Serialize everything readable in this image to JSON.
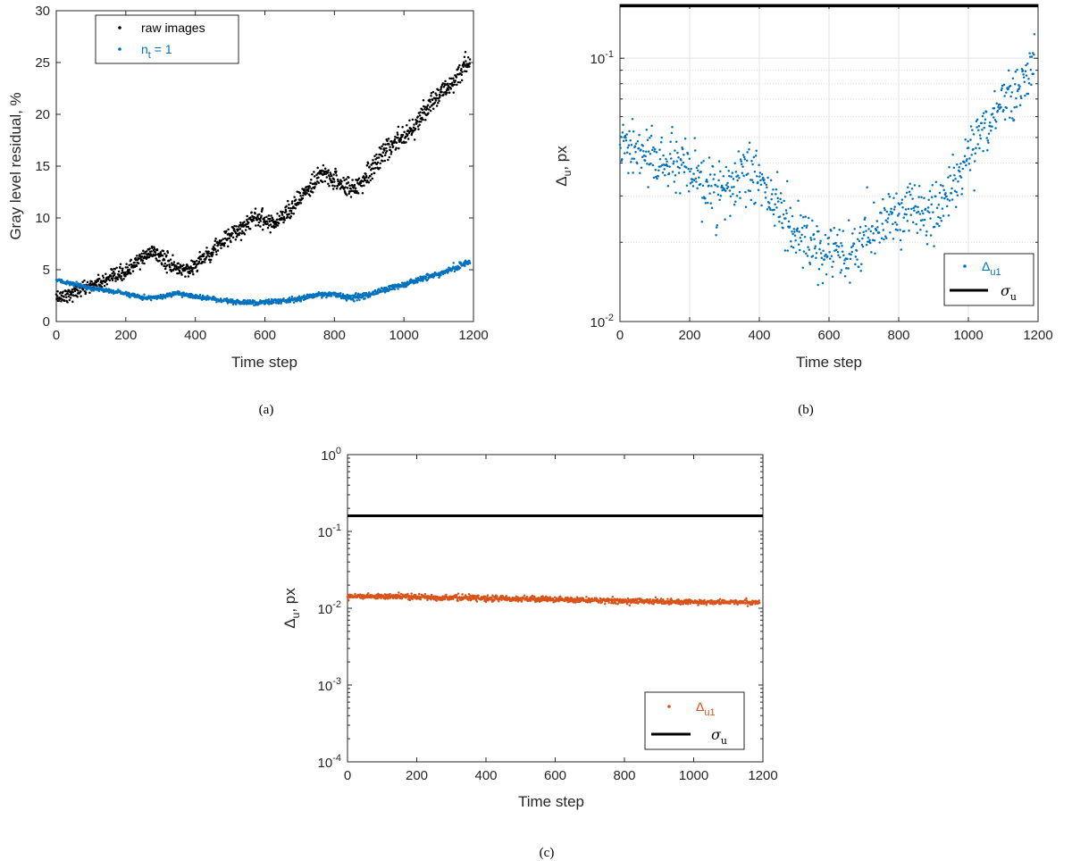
{
  "chart_data": [
    {
      "panel": "a",
      "caption": "(a)",
      "type": "scatter",
      "xlabel": "Time step",
      "ylabel": "Gray level residual, %",
      "xlim": [
        0,
        1200
      ],
      "ylim": [
        0,
        30
      ],
      "yscale": "linear",
      "xticks": [
        "0",
        "200",
        "400",
        "600",
        "800",
        "1000",
        "1200"
      ],
      "yticks": [
        "0",
        "5",
        "10",
        "15",
        "20",
        "25",
        "30"
      ],
      "grid": false,
      "legend_position": "top-left",
      "series": [
        {
          "name": "raw images",
          "color": "#000000",
          "style": "dots",
          "trend": [
            [
              0,
              2.3
            ],
            [
              50,
              2.8
            ],
            [
              100,
              3.5
            ],
            [
              150,
              4.0
            ],
            [
              200,
              4.8
            ],
            [
              250,
              6.2
            ],
            [
              280,
              6.8
            ],
            [
              310,
              6.0
            ],
            [
              340,
              5.2
            ],
            [
              380,
              5.0
            ],
            [
              420,
              6.0
            ],
            [
              460,
              7.2
            ],
            [
              500,
              8.2
            ],
            [
              540,
              9.2
            ],
            [
              570,
              10.2
            ],
            [
              600,
              9.8
            ],
            [
              630,
              9.5
            ],
            [
              660,
              10.5
            ],
            [
              700,
              11.8
            ],
            [
              740,
              13.2
            ],
            [
              770,
              14.3
            ],
            [
              800,
              13.8
            ],
            [
              830,
              13.0
            ],
            [
              860,
              12.8
            ],
            [
              900,
              14.5
            ],
            [
              950,
              16.5
            ],
            [
              1000,
              18.0
            ],
            [
              1050,
              19.8
            ],
            [
              1100,
              21.8
            ],
            [
              1150,
              23.5
            ],
            [
              1190,
              25.0
            ]
          ],
          "noise": 0.55
        },
        {
          "name": "n_t = 1",
          "color": "#0072BD",
          "style": "dots",
          "trend": [
            [
              0,
              4.0
            ],
            [
              50,
              3.6
            ],
            [
              100,
              3.2
            ],
            [
              150,
              3.0
            ],
            [
              200,
              2.7
            ],
            [
              250,
              2.3
            ],
            [
              300,
              2.4
            ],
            [
              350,
              2.7
            ],
            [
              400,
              2.4
            ],
            [
              450,
              2.2
            ],
            [
              500,
              1.9
            ],
            [
              550,
              1.8
            ],
            [
              600,
              1.9
            ],
            [
              650,
              2.0
            ],
            [
              700,
              2.2
            ],
            [
              750,
              2.6
            ],
            [
              800,
              2.6
            ],
            [
              850,
              2.3
            ],
            [
              900,
              2.6
            ],
            [
              950,
              3.1
            ],
            [
              1000,
              3.6
            ],
            [
              1050,
              4.1
            ],
            [
              1100,
              4.6
            ],
            [
              1150,
              5.2
            ],
            [
              1190,
              5.8
            ]
          ],
          "noise": 0.15
        }
      ]
    },
    {
      "panel": "b",
      "caption": "(b)",
      "type": "scatter",
      "xlabel": "Time step",
      "ylabel": "Δu, px",
      "xlim": [
        0,
        1200
      ],
      "ylim": [
        0.01,
        0.16
      ],
      "yscale": "log",
      "xticks": [
        "0",
        "200",
        "400",
        "600",
        "800",
        "1000",
        "1200"
      ],
      "yticks": [
        {
          "base": "10",
          "exp": "-2",
          "value": 0.01
        },
        {
          "base": "10",
          "exp": "-1",
          "value": 0.1
        }
      ],
      "grid": true,
      "legend_position": "bottom-right",
      "series": [
        {
          "name": "Δu1",
          "color": "#0072BD",
          "style": "dots",
          "trend": [
            [
              0,
              0.046
            ],
            [
              50,
              0.044
            ],
            [
              100,
              0.041
            ],
            [
              150,
              0.04
            ],
            [
              200,
              0.036
            ],
            [
              250,
              0.032
            ],
            [
              300,
              0.031
            ],
            [
              350,
              0.035
            ],
            [
              380,
              0.037
            ],
            [
              420,
              0.031
            ],
            [
              460,
              0.026
            ],
            [
              500,
              0.022
            ],
            [
              550,
              0.019
            ],
            [
              600,
              0.018
            ],
            [
              650,
              0.017
            ],
            [
              700,
              0.02
            ],
            [
              750,
              0.024
            ],
            [
              800,
              0.026
            ],
            [
              850,
              0.027
            ],
            [
              900,
              0.025
            ],
            [
              950,
              0.032
            ],
            [
              1000,
              0.042
            ],
            [
              1050,
              0.056
            ],
            [
              1100,
              0.068
            ],
            [
              1150,
              0.08
            ],
            [
              1190,
              0.09
            ]
          ],
          "noise": 0.12
        },
        {
          "name": "σu",
          "color": "#000000",
          "style": "line",
          "value": 0.158
        }
      ]
    },
    {
      "panel": "c",
      "caption": "(c)",
      "type": "scatter",
      "xlabel": "Time step",
      "ylabel": "Δu, px",
      "xlim": [
        0,
        1200
      ],
      "ylim": [
        0.0001,
        1
      ],
      "yscale": "log",
      "xticks": [
        "0",
        "200",
        "400",
        "600",
        "800",
        "1000",
        "1200"
      ],
      "yticks": [
        {
          "base": "10",
          "exp": "-4",
          "value": 0.0001
        },
        {
          "base": "10",
          "exp": "-3",
          "value": 0.001
        },
        {
          "base": "10",
          "exp": "-2",
          "value": 0.01
        },
        {
          "base": "10",
          "exp": "-1",
          "value": 0.1
        },
        {
          "base": "10",
          "exp": "0",
          "value": 1
        }
      ],
      "grid": false,
      "legend_position": "bottom-right",
      "series": [
        {
          "name": "Δu1",
          "color": "#D95319",
          "style": "dots",
          "trend": [
            [
              0,
              0.0145
            ],
            [
              200,
              0.014
            ],
            [
              400,
              0.0135
            ],
            [
              600,
              0.013
            ],
            [
              800,
              0.0125
            ],
            [
              1000,
              0.012
            ],
            [
              1190,
              0.012
            ]
          ],
          "noise": 0.04
        },
        {
          "name": "σu",
          "color": "#000000",
          "style": "line",
          "value": 0.16
        }
      ]
    }
  ]
}
